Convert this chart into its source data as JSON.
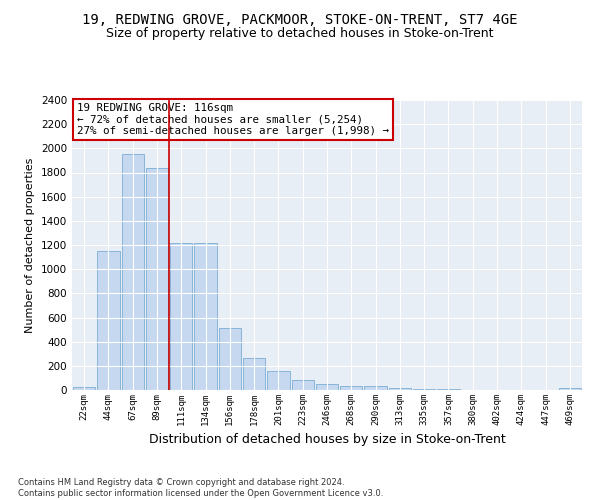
{
  "title_line1": "19, REDWING GROVE, PACKMOOR, STOKE-ON-TRENT, ST7 4GE",
  "title_line2": "Size of property relative to detached houses in Stoke-on-Trent",
  "xlabel": "Distribution of detached houses by size in Stoke-on-Trent",
  "ylabel": "Number of detached properties",
  "footnote": "Contains HM Land Registry data © Crown copyright and database right 2024.\nContains public sector information licensed under the Open Government Licence v3.0.",
  "categories": [
    "22sqm",
    "44sqm",
    "67sqm",
    "89sqm",
    "111sqm",
    "134sqm",
    "156sqm",
    "178sqm",
    "201sqm",
    "223sqm",
    "246sqm",
    "268sqm",
    "290sqm",
    "313sqm",
    "335sqm",
    "357sqm",
    "380sqm",
    "402sqm",
    "424sqm",
    "447sqm",
    "469sqm"
  ],
  "values": [
    25,
    1150,
    1950,
    1840,
    1220,
    1220,
    510,
    265,
    155,
    80,
    50,
    35,
    35,
    20,
    8,
    5,
    3,
    3,
    3,
    3,
    15
  ],
  "bar_color": "#c5d8ef",
  "bar_edge_color": "#7aadd4",
  "vline_x": 3.5,
  "vline_color": "#cc0000",
  "annotation_text": "19 REDWING GROVE: 116sqm\n← 72% of detached houses are smaller (5,254)\n27% of semi-detached houses are larger (1,998) →",
  "annotation_box_color": "#ffffff",
  "annotation_box_edge": "#cc0000",
  "ylim": [
    0,
    2400
  ],
  "yticks": [
    0,
    200,
    400,
    600,
    800,
    1000,
    1200,
    1400,
    1600,
    1800,
    2000,
    2200,
    2400
  ],
  "bg_color": "#e8eef5",
  "title1_fontsize": 10,
  "title2_fontsize": 9,
  "xlabel_fontsize": 9,
  "ylabel_fontsize": 8,
  "footnote_fontsize": 6
}
